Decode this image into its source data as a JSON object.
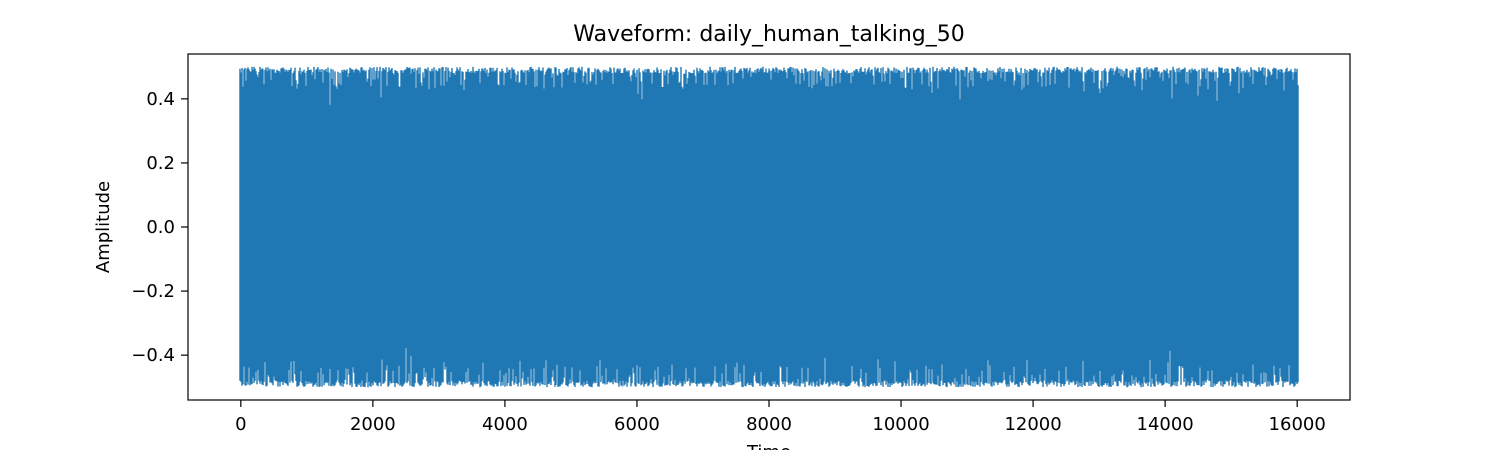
{
  "chart_data": {
    "type": "line",
    "title": "Waveform: daily_human_talking_50",
    "xlabel": "Time",
    "ylabel": "Amplitude",
    "xlim": [
      -800,
      16800
    ],
    "ylim": [
      -0.54,
      0.54
    ],
    "x_ticks": [
      0,
      2000,
      4000,
      6000,
      8000,
      10000,
      12000,
      14000,
      16000
    ],
    "x_tick_labels": [
      "0",
      "2000",
      "4000",
      "6000",
      "8000",
      "10000",
      "12000",
      "14000",
      "16000"
    ],
    "y_ticks": [
      0.4,
      0.2,
      0.0,
      -0.2,
      -0.4
    ],
    "y_tick_labels": [
      "0.4",
      "0.2",
      "0.0",
      "−0.2",
      "−0.4"
    ],
    "grid": false,
    "legend": "none",
    "series": [
      {
        "color": "#1f77b4",
        "sample_count": 16000,
        "x_start": 0,
        "x_end": 16000,
        "amplitude_envelope_max": 0.5,
        "amplitude_envelope_min": -0.5
      }
    ]
  }
}
